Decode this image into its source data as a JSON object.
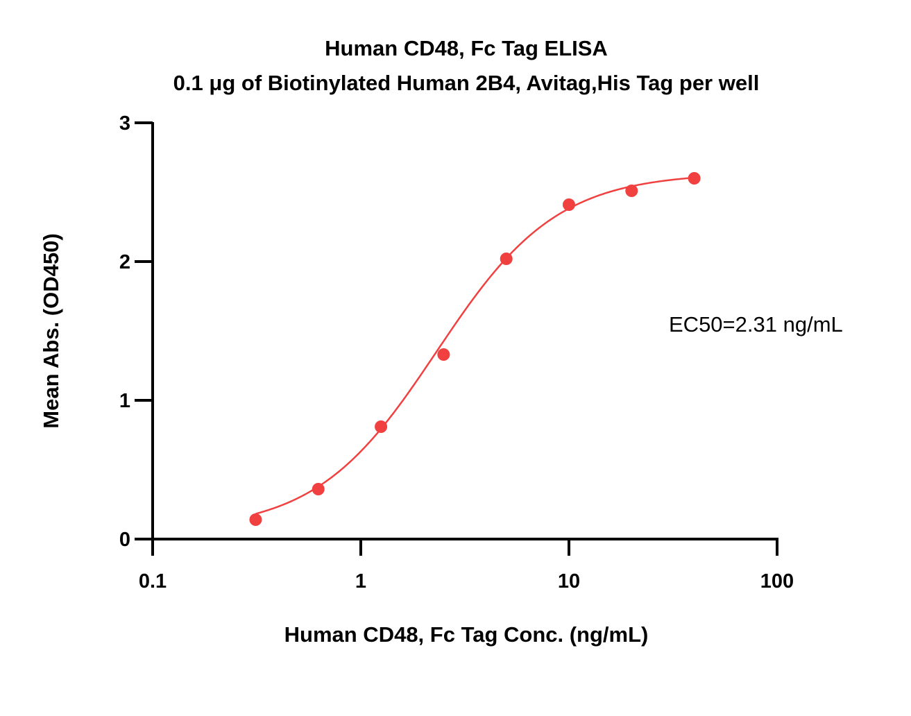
{
  "chart_data": {
    "type": "scatter",
    "title": "Human CD48, Fc Tag ELISA",
    "subtitle": "0.1 μg of Biotinylated Human 2B4, Avitag,His Tag per well",
    "xlabel": "Human CD48, Fc Tag Conc. (ng/mL)",
    "ylabel": "Mean Abs. (OD450)",
    "xscale": "log",
    "xlim": [
      0.1,
      100
    ],
    "ylim": [
      0,
      3
    ],
    "xticks": [
      0.1,
      1,
      10,
      100
    ],
    "xtick_labels": [
      "0.1",
      "1",
      "10",
      "100"
    ],
    "yticks": [
      0,
      1,
      2,
      3
    ],
    "ytick_labels": [
      "0",
      "1",
      "2",
      "3"
    ],
    "grid": false,
    "annotation": "EC50=2.31  ng/mL",
    "series": [
      {
        "color": "#f04040",
        "x": [
          0.3125,
          0.625,
          1.25,
          2.5,
          5,
          10,
          20,
          40
        ],
        "y": [
          0.14,
          0.36,
          0.81,
          1.33,
          2.02,
          2.41,
          2.51,
          2.6
        ]
      }
    ],
    "fit": {
      "model": "4PL",
      "color": "#f04040",
      "bottom": 0.06,
      "top": 2.64,
      "ec50": 2.31,
      "hill": 1.5
    }
  }
}
